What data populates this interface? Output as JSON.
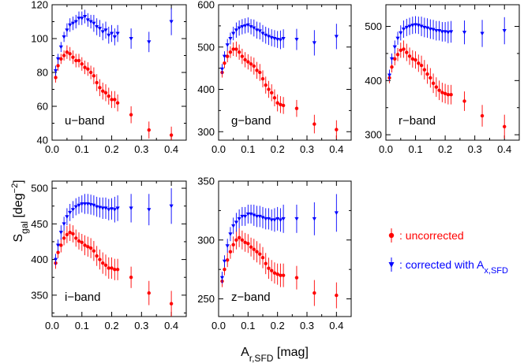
{
  "figure": {
    "ylabel_main": "S",
    "ylabel_sub": "gal",
    "ylabel_unit_pre": " [deg",
    "ylabel_unit_sup": "−2",
    "ylabel_unit_post": "]",
    "xlabel_main": "A",
    "xlabel_sub": "r,SFD",
    "xlabel_unit": " [mag]"
  },
  "legend": {
    "uncorrected": ": uncorrected",
    "corrected_pre": ": corrected with A",
    "corrected_sub": "x,SFD",
    "uncorrected_color": "#ff0000",
    "corrected_color": "#0000ff"
  },
  "chart_data": [
    {
      "type": "scatter",
      "band_label": "u−band",
      "xlim": [
        0,
        0.45
      ],
      "ylim": [
        40,
        120
      ],
      "xticks": [
        "0.0",
        "0.1",
        "0.2",
        "0.3",
        "0.4"
      ],
      "yticks": [
        "40",
        "60",
        "80",
        "100",
        "120"
      ],
      "series": [
        {
          "name": "uncorrected",
          "color": "#ff0000",
          "marker": "circle",
          "x": [
            0.012,
            0.02,
            0.03,
            0.04,
            0.05,
            0.06,
            0.07,
            0.08,
            0.09,
            0.1,
            0.11,
            0.12,
            0.13,
            0.14,
            0.15,
            0.16,
            0.17,
            0.18,
            0.19,
            0.2,
            0.21,
            0.22,
            0.265,
            0.325,
            0.4
          ],
          "y": [
            77,
            84,
            88,
            90,
            92,
            91,
            89,
            87,
            87,
            85,
            83,
            82,
            80,
            78,
            74,
            71,
            69,
            68,
            66,
            64,
            64,
            62,
            55,
            46,
            43
          ],
          "err": [
            3,
            3,
            3,
            3,
            4,
            4,
            4,
            4,
            4,
            4,
            4,
            4,
            4,
            5,
            5,
            5,
            5,
            5,
            5,
            5,
            5,
            5,
            5,
            5,
            5
          ]
        },
        {
          "name": "corrected",
          "color": "#0000ff",
          "marker": "triangle-down",
          "x": [
            0.012,
            0.02,
            0.03,
            0.04,
            0.05,
            0.06,
            0.07,
            0.08,
            0.09,
            0.1,
            0.11,
            0.12,
            0.13,
            0.14,
            0.15,
            0.16,
            0.17,
            0.18,
            0.19,
            0.2,
            0.21,
            0.22,
            0.265,
            0.325,
            0.4
          ],
          "y": [
            81,
            88,
            95,
            101,
            105,
            108,
            109,
            110,
            112,
            112,
            113,
            111,
            110,
            109,
            107,
            106,
            104,
            105,
            102,
            103,
            101,
            103,
            100,
            98,
            110
          ],
          "err": [
            3,
            3,
            3,
            3,
            4,
            4,
            4,
            4,
            4,
            4,
            4,
            4,
            4,
            5,
            5,
            5,
            5,
            5,
            5,
            5,
            5,
            5,
            6,
            6,
            8
          ]
        }
      ]
    },
    {
      "type": "scatter",
      "band_label": "g−band",
      "xlim": [
        0,
        0.45
      ],
      "ylim": [
        280,
        600
      ],
      "xticks": [
        "0.0",
        "0.1",
        "0.2",
        "0.3",
        "0.4"
      ],
      "yticks": [
        "300",
        "400",
        "500",
        "600"
      ],
      "series": [
        {
          "name": "uncorrected",
          "color": "#ff0000",
          "marker": "circle",
          "x": [
            0.012,
            0.02,
            0.03,
            0.04,
            0.05,
            0.06,
            0.07,
            0.08,
            0.09,
            0.1,
            0.11,
            0.12,
            0.13,
            0.14,
            0.15,
            0.16,
            0.17,
            0.18,
            0.19,
            0.2,
            0.21,
            0.22,
            0.265,
            0.325,
            0.4
          ],
          "y": [
            440,
            462,
            478,
            488,
            495,
            495,
            488,
            478,
            470,
            465,
            460,
            455,
            445,
            440,
            425,
            410,
            400,
            392,
            380,
            368,
            364,
            362,
            355,
            318,
            305
          ],
          "err": [
            12,
            12,
            14,
            14,
            16,
            18,
            18,
            18,
            18,
            18,
            18,
            20,
            20,
            20,
            20,
            20,
            20,
            20,
            20,
            20,
            20,
            20,
            20,
            22,
            22
          ]
        },
        {
          "name": "corrected",
          "color": "#0000ff",
          "marker": "triangle-down",
          "x": [
            0.012,
            0.02,
            0.03,
            0.04,
            0.05,
            0.06,
            0.07,
            0.08,
            0.09,
            0.1,
            0.11,
            0.12,
            0.13,
            0.14,
            0.15,
            0.16,
            0.17,
            0.18,
            0.19,
            0.2,
            0.21,
            0.22,
            0.265,
            0.325,
            0.4
          ],
          "y": [
            448,
            478,
            505,
            520,
            532,
            540,
            545,
            548,
            550,
            552,
            548,
            545,
            540,
            538,
            532,
            528,
            525,
            522,
            520,
            518,
            517,
            520,
            518,
            510,
            525
          ],
          "err": [
            12,
            12,
            14,
            14,
            16,
            18,
            18,
            18,
            18,
            18,
            18,
            20,
            20,
            20,
            20,
            20,
            20,
            20,
            20,
            20,
            22,
            22,
            25,
            30,
            30
          ]
        }
      ]
    },
    {
      "type": "scatter",
      "band_label": "r−band",
      "xlim": [
        0,
        0.45
      ],
      "ylim": [
        290,
        540
      ],
      "xticks": [
        "0.0",
        "0.1",
        "0.2",
        "0.3",
        "0.4"
      ],
      "yticks": [
        "300",
        "400",
        "500"
      ],
      "series": [
        {
          "name": "uncorrected",
          "color": "#ff0000",
          "marker": "circle",
          "x": [
            0.012,
            0.02,
            0.03,
            0.04,
            0.05,
            0.06,
            0.07,
            0.08,
            0.09,
            0.1,
            0.11,
            0.12,
            0.13,
            0.14,
            0.15,
            0.16,
            0.17,
            0.18,
            0.19,
            0.2,
            0.21,
            0.22,
            0.265,
            0.325,
            0.4
          ],
          "y": [
            405,
            425,
            440,
            448,
            456,
            458,
            452,
            445,
            440,
            438,
            432,
            428,
            420,
            412,
            405,
            395,
            388,
            382,
            378,
            376,
            374,
            374,
            362,
            335,
            315
          ],
          "err": [
            10,
            10,
            12,
            12,
            14,
            16,
            16,
            16,
            16,
            16,
            16,
            18,
            18,
            18,
            18,
            18,
            18,
            18,
            18,
            18,
            18,
            18,
            18,
            20,
            22
          ]
        },
        {
          "name": "corrected",
          "color": "#0000ff",
          "marker": "triangle-down",
          "x": [
            0.012,
            0.02,
            0.03,
            0.04,
            0.05,
            0.06,
            0.07,
            0.08,
            0.09,
            0.1,
            0.11,
            0.12,
            0.13,
            0.14,
            0.15,
            0.16,
            0.17,
            0.18,
            0.19,
            0.2,
            0.21,
            0.22,
            0.265,
            0.325,
            0.4
          ],
          "y": [
            410,
            440,
            462,
            478,
            488,
            495,
            498,
            500,
            502,
            503,
            502,
            500,
            498,
            497,
            495,
            494,
            492,
            492,
            490,
            490,
            489,
            490,
            489,
            487,
            492
          ],
          "err": [
            10,
            10,
            12,
            12,
            14,
            16,
            16,
            16,
            16,
            16,
            16,
            18,
            18,
            18,
            18,
            18,
            18,
            18,
            18,
            18,
            20,
            20,
            22,
            25,
            25
          ]
        }
      ]
    },
    {
      "type": "scatter",
      "band_label": "i−band",
      "xlim": [
        0,
        0.45
      ],
      "ylim": [
        320,
        510
      ],
      "xticks": [
        "0.0",
        "0.1",
        "0.2",
        "0.3",
        "0.4"
      ],
      "yticks": [
        "350",
        "400",
        "450",
        "500"
      ],
      "series": [
        {
          "name": "uncorrected",
          "color": "#ff0000",
          "marker": "circle",
          "x": [
            0.012,
            0.02,
            0.03,
            0.04,
            0.05,
            0.06,
            0.07,
            0.08,
            0.09,
            0.1,
            0.11,
            0.12,
            0.13,
            0.14,
            0.15,
            0.16,
            0.17,
            0.18,
            0.19,
            0.2,
            0.21,
            0.22,
            0.265,
            0.325,
            0.4
          ],
          "y": [
            395,
            410,
            420,
            430,
            435,
            438,
            436,
            430,
            426,
            424,
            420,
            418,
            416,
            412,
            405,
            400,
            395,
            392,
            388,
            388,
            386,
            386,
            375,
            353,
            338
          ],
          "err": [
            8,
            8,
            10,
            10,
            12,
            12,
            12,
            12,
            12,
            12,
            14,
            14,
            14,
            14,
            14,
            14,
            15,
            15,
            15,
            15,
            15,
            15,
            15,
            17,
            18
          ]
        },
        {
          "name": "corrected",
          "color": "#0000ff",
          "marker": "triangle-down",
          "x": [
            0.012,
            0.02,
            0.03,
            0.04,
            0.05,
            0.06,
            0.07,
            0.08,
            0.09,
            0.1,
            0.11,
            0.12,
            0.13,
            0.14,
            0.15,
            0.16,
            0.17,
            0.18,
            0.19,
            0.2,
            0.21,
            0.22,
            0.265,
            0.325,
            0.4
          ],
          "y": [
            400,
            420,
            438,
            450,
            460,
            466,
            470,
            474,
            476,
            478,
            478,
            478,
            477,
            476,
            474,
            473,
            472,
            472,
            470,
            471,
            470,
            472,
            472,
            470,
            475
          ],
          "err": [
            8,
            8,
            10,
            10,
            12,
            12,
            12,
            12,
            12,
            12,
            14,
            14,
            14,
            14,
            14,
            14,
            15,
            15,
            15,
            15,
            18,
            18,
            20,
            22,
            25
          ]
        }
      ]
    },
    {
      "type": "scatter",
      "band_label": "z−band",
      "xlim": [
        0,
        0.45
      ],
      "ylim": [
        235,
        350
      ],
      "xticks": [
        "0.0",
        "0.1",
        "0.2",
        "0.3",
        "0.4"
      ],
      "yticks": [
        "250",
        "300",
        "350"
      ],
      "series": [
        {
          "name": "uncorrected",
          "color": "#ff0000",
          "marker": "circle",
          "x": [
            0.012,
            0.02,
            0.03,
            0.04,
            0.05,
            0.06,
            0.07,
            0.08,
            0.09,
            0.1,
            0.11,
            0.12,
            0.13,
            0.14,
            0.15,
            0.16,
            0.17,
            0.18,
            0.19,
            0.2,
            0.21,
            0.22,
            0.265,
            0.325,
            0.4
          ],
          "y": [
            265,
            275,
            283,
            290,
            296,
            300,
            302,
            300,
            298,
            297,
            294,
            292,
            290,
            288,
            285,
            280,
            276,
            274,
            272,
            271,
            270,
            270,
            268,
            255,
            253
          ],
          "err": [
            5,
            5,
            6,
            6,
            7,
            8,
            8,
            8,
            8,
            8,
            8,
            9,
            9,
            9,
            9,
            9,
            9,
            9,
            9,
            9,
            10,
            10,
            10,
            11,
            11
          ]
        },
        {
          "name": "corrected",
          "color": "#0000ff",
          "marker": "triangle-down",
          "x": [
            0.012,
            0.02,
            0.03,
            0.04,
            0.05,
            0.06,
            0.07,
            0.08,
            0.09,
            0.1,
            0.11,
            0.12,
            0.13,
            0.14,
            0.15,
            0.16,
            0.17,
            0.18,
            0.19,
            0.2,
            0.21,
            0.22,
            0.265,
            0.325,
            0.4
          ],
          "y": [
            268,
            282,
            295,
            305,
            312,
            315,
            318,
            320,
            320,
            322,
            322,
            321,
            320,
            320,
            319,
            318,
            318,
            317,
            317,
            318,
            317,
            318,
            318,
            318,
            323
          ],
          "err": [
            5,
            5,
            6,
            6,
            7,
            8,
            8,
            8,
            8,
            8,
            8,
            9,
            9,
            9,
            9,
            9,
            9,
            9,
            10,
            10,
            10,
            12,
            12,
            14,
            16
          ]
        }
      ]
    }
  ]
}
